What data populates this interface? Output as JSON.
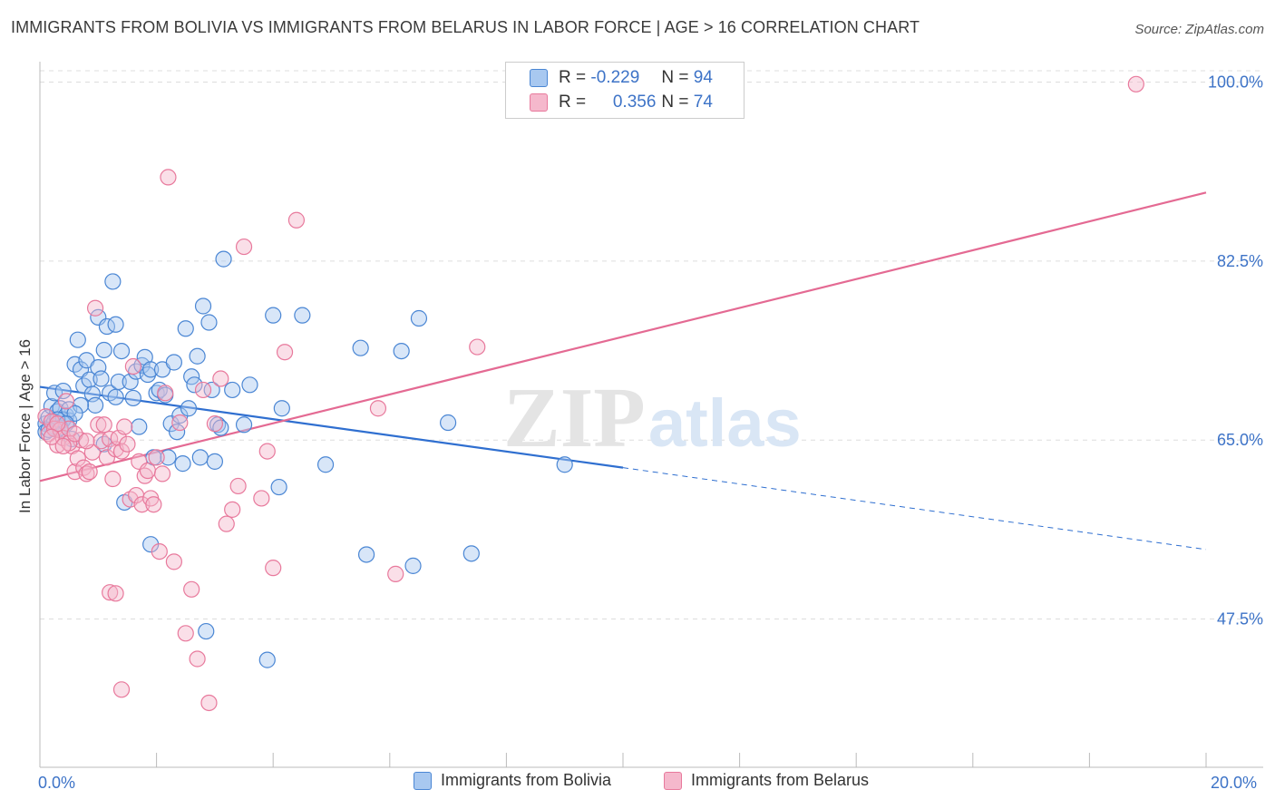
{
  "title": "IMMIGRANTS FROM BOLIVIA VS IMMIGRANTS FROM BELARUS IN LABOR FORCE | AGE > 16 CORRELATION CHART",
  "source": "Source: ZipAtlas.com",
  "watermark": {
    "zip": "ZIP",
    "atlas": "atlas"
  },
  "legend_top": {
    "row1": {
      "r_label": "R =",
      "r_value": "-0.229",
      "n_label": "N =",
      "n_value": "94"
    },
    "row2": {
      "r_label": "R =",
      "r_value": "0.356",
      "n_label": "N =",
      "n_value": "74"
    }
  },
  "colors": {
    "blue_fill": "#a8c8f0",
    "blue_stroke": "#4a86d4",
    "blue_line": "#2f6fd0",
    "pink_fill": "#f5b8cc",
    "pink_stroke": "#e8799c",
    "pink_line": "#e46a93",
    "tick_text": "#3d73c7",
    "grid": "#dddddd"
  },
  "chart_data": {
    "type": "scatter",
    "title": "IMMIGRANTS FROM BOLIVIA VS IMMIGRANTS FROM BELARUS IN LABOR FORCE | AGE > 16 CORRELATION CHART",
    "xlabel": "",
    "ylabel": "In Labor Force | Age > 16",
    "xlim": [
      0,
      20
    ],
    "ylim": [
      33,
      102
    ],
    "x_tick_labels": [
      "0.0%",
      "20.0%"
    ],
    "y_ticks": [
      47.5,
      65.0,
      82.5,
      100.0
    ],
    "y_tick_labels": [
      "47.5%",
      "65.0%",
      "82.5%",
      "100.0%"
    ],
    "grid": true,
    "legend_position": "bottom",
    "series": [
      {
        "name": "Immigrants from Bolivia",
        "color": "#4a86d4",
        "trend": {
          "x0": 0,
          "y0": 70.2,
          "x1": 10,
          "y1": 62.3,
          "dashed_to_x": 20,
          "dashed_to_y": 54.3
        },
        "points": [
          [
            0.1,
            66.6
          ],
          [
            0.15,
            67.2
          ],
          [
            0.2,
            68.3
          ],
          [
            0.25,
            69.6
          ],
          [
            0.3,
            67.8
          ],
          [
            0.3,
            66.0
          ],
          [
            0.35,
            68.1
          ],
          [
            0.4,
            69.8
          ],
          [
            0.45,
            67.4
          ],
          [
            0.5,
            66.9
          ],
          [
            0.55,
            65.1
          ],
          [
            0.6,
            72.4
          ],
          [
            0.65,
            74.8
          ],
          [
            0.7,
            71.9
          ],
          [
            0.75,
            70.3
          ],
          [
            0.8,
            72.8
          ],
          [
            0.85,
            70.9
          ],
          [
            0.9,
            69.5
          ],
          [
            0.95,
            68.4
          ],
          [
            1.0,
            77.0
          ],
          [
            1.0,
            72.1
          ],
          [
            1.05,
            71.0
          ],
          [
            1.1,
            73.8
          ],
          [
            1.15,
            76.1
          ],
          [
            1.2,
            69.6
          ],
          [
            1.25,
            80.5
          ],
          [
            1.3,
            76.3
          ],
          [
            1.3,
            69.2
          ],
          [
            1.35,
            70.7
          ],
          [
            1.4,
            73.7
          ],
          [
            1.45,
            58.9
          ],
          [
            1.55,
            70.7
          ],
          [
            1.6,
            69.1
          ],
          [
            1.65,
            71.7
          ],
          [
            1.7,
            66.3
          ],
          [
            1.75,
            72.3
          ],
          [
            1.8,
            73.1
          ],
          [
            1.85,
            71.4
          ],
          [
            1.9,
            71.9
          ],
          [
            1.9,
            54.8
          ],
          [
            1.95,
            63.3
          ],
          [
            2.0,
            69.6
          ],
          [
            2.05,
            69.9
          ],
          [
            2.1,
            71.9
          ],
          [
            2.15,
            69.4
          ],
          [
            2.2,
            63.3
          ],
          [
            2.25,
            66.6
          ],
          [
            2.3,
            72.6
          ],
          [
            2.35,
            65.8
          ],
          [
            2.4,
            67.4
          ],
          [
            2.45,
            62.7
          ],
          [
            2.5,
            75.9
          ],
          [
            2.55,
            68.1
          ],
          [
            2.6,
            71.2
          ],
          [
            2.65,
            70.4
          ],
          [
            2.7,
            73.2
          ],
          [
            2.75,
            63.3
          ],
          [
            2.8,
            78.1
          ],
          [
            2.85,
            46.3
          ],
          [
            2.9,
            76.5
          ],
          [
            2.95,
            69.9
          ],
          [
            3.0,
            62.9
          ],
          [
            3.05,
            66.5
          ],
          [
            3.1,
            66.2
          ],
          [
            3.15,
            82.7
          ],
          [
            3.3,
            69.9
          ],
          [
            3.5,
            66.5
          ],
          [
            3.6,
            70.4
          ],
          [
            3.9,
            43.5
          ],
          [
            4.0,
            77.2
          ],
          [
            4.1,
            60.4
          ],
          [
            4.15,
            68.1
          ],
          [
            4.5,
            77.2
          ],
          [
            4.9,
            62.6
          ],
          [
            5.5,
            74.0
          ],
          [
            5.6,
            53.8
          ],
          [
            6.2,
            73.7
          ],
          [
            6.4,
            52.7
          ],
          [
            6.5,
            76.9
          ],
          [
            7.0,
            66.7
          ],
          [
            7.4,
            53.9
          ],
          [
            9.0,
            62.6
          ],
          [
            0.2,
            66.4
          ],
          [
            0.25,
            66.8
          ],
          [
            0.4,
            67.0
          ],
          [
            0.1,
            65.8
          ],
          [
            0.5,
            68.0
          ],
          [
            0.35,
            66.2
          ],
          [
            0.7,
            68.4
          ],
          [
            1.1,
            64.6
          ],
          [
            0.6,
            67.6
          ],
          [
            0.3,
            67.0
          ],
          [
            0.45,
            66.6
          ],
          [
            0.15,
            66.0
          ]
        ]
      },
      {
        "name": "Immigrants from Belarus",
        "color": "#e8799c",
        "trend": {
          "x0": 0,
          "y0": 61.0,
          "x1": 20,
          "y1": 89.2
        },
        "points": [
          [
            0.1,
            67.3
          ],
          [
            0.15,
            65.6
          ],
          [
            0.2,
            66.8
          ],
          [
            0.25,
            66.1
          ],
          [
            0.3,
            64.5
          ],
          [
            0.35,
            66.0
          ],
          [
            0.4,
            65.2
          ],
          [
            0.45,
            68.8
          ],
          [
            0.5,
            66.1
          ],
          [
            0.55,
            64.4
          ],
          [
            0.6,
            61.9
          ],
          [
            0.65,
            63.2
          ],
          [
            0.7,
            65.0
          ],
          [
            0.75,
            62.3
          ],
          [
            0.8,
            61.7
          ],
          [
            0.85,
            61.9
          ],
          [
            0.9,
            63.8
          ],
          [
            0.95,
            77.9
          ],
          [
            1.0,
            66.5
          ],
          [
            1.05,
            64.9
          ],
          [
            1.1,
            66.5
          ],
          [
            1.15,
            63.3
          ],
          [
            1.2,
            65.1
          ],
          [
            1.25,
            61.2
          ],
          [
            1.3,
            64.1
          ],
          [
            1.35,
            65.2
          ],
          [
            1.4,
            63.9
          ],
          [
            1.45,
            66.3
          ],
          [
            1.5,
            64.6
          ],
          [
            1.55,
            59.2
          ],
          [
            1.6,
            72.2
          ],
          [
            1.65,
            59.6
          ],
          [
            1.7,
            62.9
          ],
          [
            1.75,
            58.7
          ],
          [
            1.8,
            61.5
          ],
          [
            1.85,
            62.0
          ],
          [
            1.9,
            59.3
          ],
          [
            1.95,
            58.7
          ],
          [
            2.0,
            63.3
          ],
          [
            2.05,
            54.1
          ],
          [
            2.1,
            61.7
          ],
          [
            2.15,
            69.6
          ],
          [
            2.2,
            90.7
          ],
          [
            2.3,
            53.1
          ],
          [
            2.4,
            66.7
          ],
          [
            2.5,
            46.1
          ],
          [
            2.6,
            50.4
          ],
          [
            2.7,
            43.6
          ],
          [
            2.8,
            69.9
          ],
          [
            2.9,
            39.3
          ],
          [
            3.0,
            66.6
          ],
          [
            3.1,
            71.0
          ],
          [
            3.2,
            56.8
          ],
          [
            3.3,
            58.2
          ],
          [
            3.4,
            60.5
          ],
          [
            3.5,
            83.9
          ],
          [
            3.8,
            59.3
          ],
          [
            3.9,
            63.9
          ],
          [
            4.0,
            52.5
          ],
          [
            4.2,
            73.6
          ],
          [
            4.4,
            86.5
          ],
          [
            5.8,
            68.1
          ],
          [
            6.1,
            51.9
          ],
          [
            7.5,
            74.1
          ],
          [
            18.8,
            99.8
          ],
          [
            1.2,
            50.1
          ],
          [
            1.3,
            50.0
          ],
          [
            1.4,
            40.6
          ],
          [
            0.5,
            64.7
          ],
          [
            0.3,
            66.6
          ],
          [
            0.2,
            65.3
          ],
          [
            0.4,
            64.4
          ],
          [
            0.6,
            65.6
          ],
          [
            0.8,
            64.9
          ]
        ]
      }
    ]
  },
  "bottom_legend": [
    {
      "label": "Immigrants from Bolivia"
    },
    {
      "label": "Immigrants from Belarus"
    }
  ]
}
